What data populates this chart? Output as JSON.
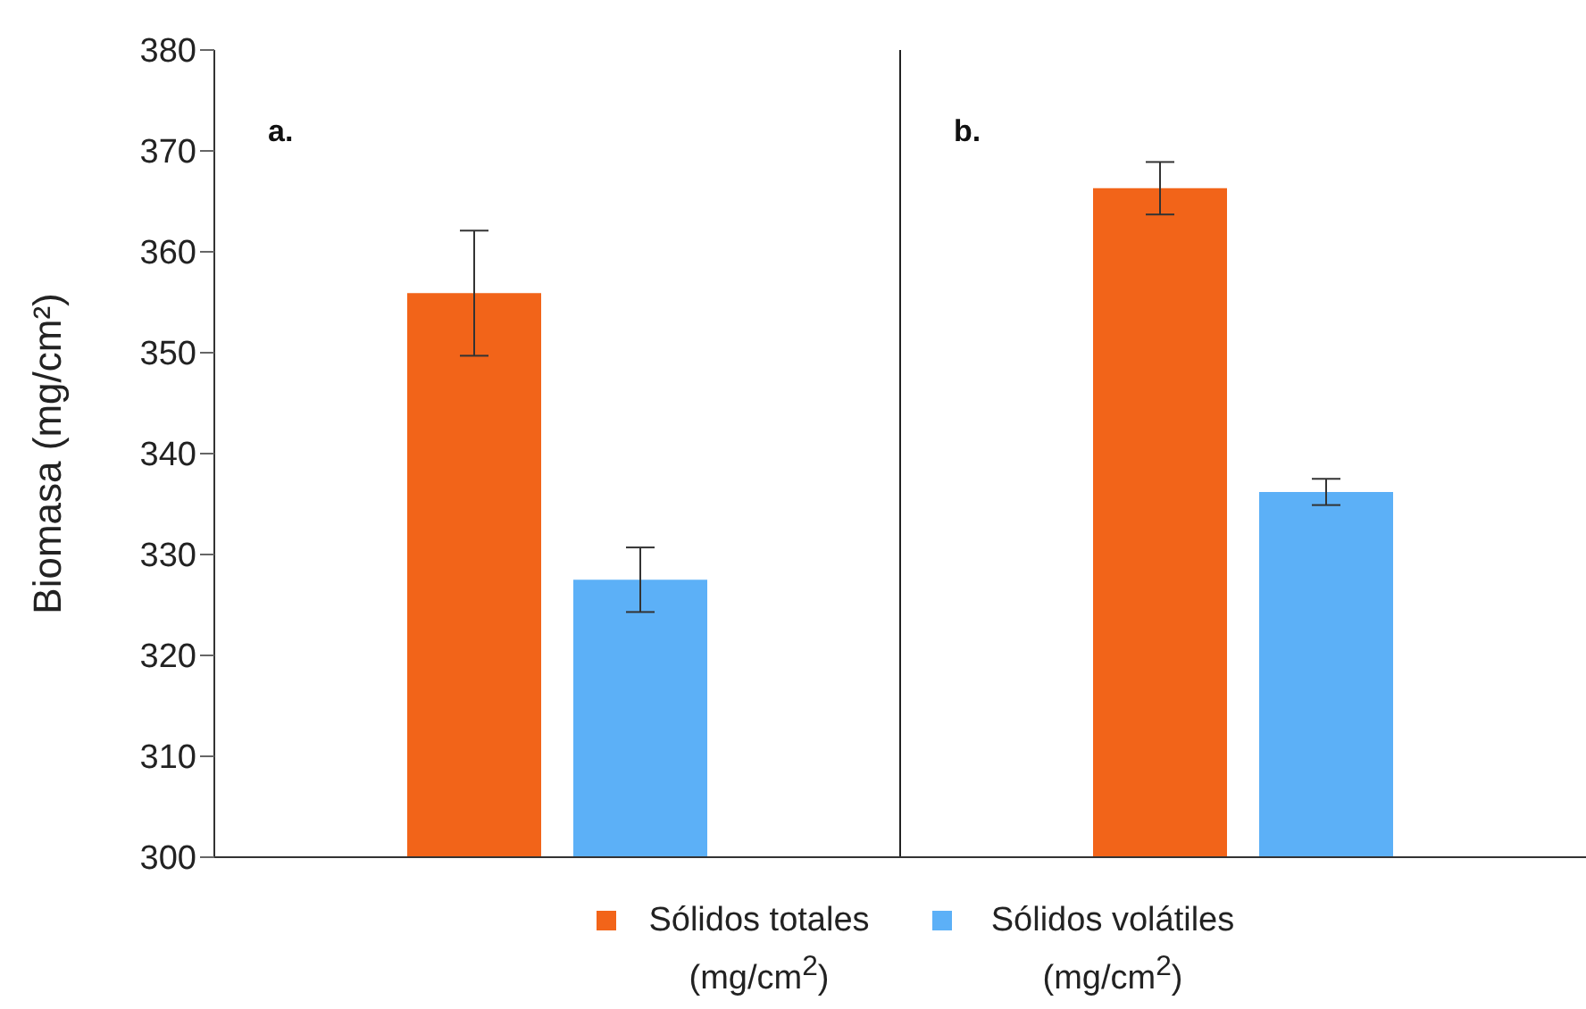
{
  "chart_data": {
    "type": "bar",
    "ylabel": "Biomasa (mg/cm²)",
    "categories": [
      null,
      null
    ],
    "ylim": [
      300,
      380
    ],
    "yticks": [
      300,
      310,
      320,
      330,
      340,
      350,
      360,
      370,
      380
    ],
    "grid": "x",
    "legend": "bottom",
    "annotations": [
      "a.",
      "b."
    ],
    "series": [
      {
        "name": "Sólidos totales (mg/cm$^{2}$)",
        "color": "#f26419",
        "values": [
          355.9,
          366.3
        ],
        "errors": [
          6.2,
          2.6
        ]
      },
      {
        "name": "Sólidos volátiles (mg/cm$^{2}$)",
        "color": "#5cb0f7",
        "values": [
          327.5,
          336.2
        ],
        "errors": [
          3.2,
          1.3
        ]
      }
    ]
  }
}
